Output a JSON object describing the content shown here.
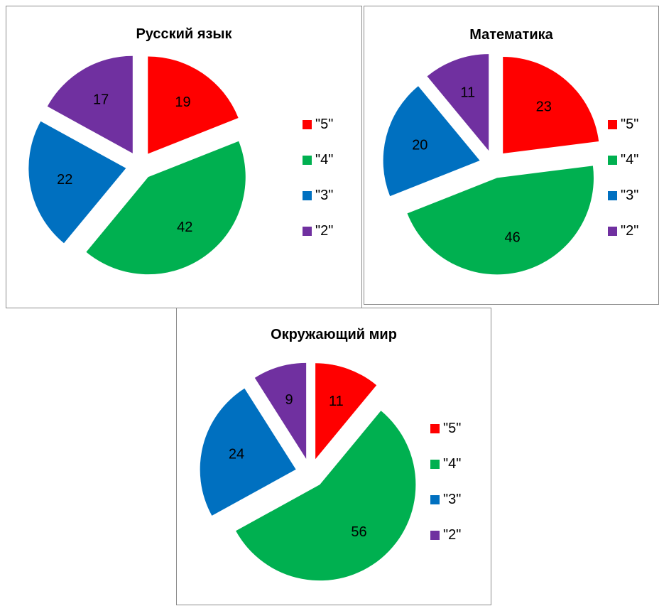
{
  "chart_data": [
    {
      "type": "pie",
      "title": "Русский язык",
      "categories": [
        "\"5\"",
        "\"4\"",
        "\"3\"",
        "\"2\""
      ],
      "values": [
        19,
        42,
        22,
        17
      ],
      "colors": [
        "#ff0000",
        "#00b050",
        "#0070c0",
        "#7030a0"
      ],
      "exploded": true,
      "legend": "right"
    },
    {
      "type": "pie",
      "title": "Математика",
      "categories": [
        "\"5\"",
        "\"4\"",
        "\"3\"",
        "\"2\""
      ],
      "values": [
        23,
        46,
        20,
        11
      ],
      "colors": [
        "#ff0000",
        "#00b050",
        "#0070c0",
        "#7030a0"
      ],
      "exploded": true,
      "legend": "right"
    },
    {
      "type": "pie",
      "title": "Окружающий мир",
      "categories": [
        "\"5\"",
        "\"4\"",
        "\"3\"",
        "\"2\""
      ],
      "values": [
        11,
        56,
        24,
        9
      ],
      "colors": [
        "#ff0000",
        "#00b050",
        "#0070c0",
        "#7030a0"
      ],
      "exploded": true,
      "legend": "right"
    }
  ]
}
